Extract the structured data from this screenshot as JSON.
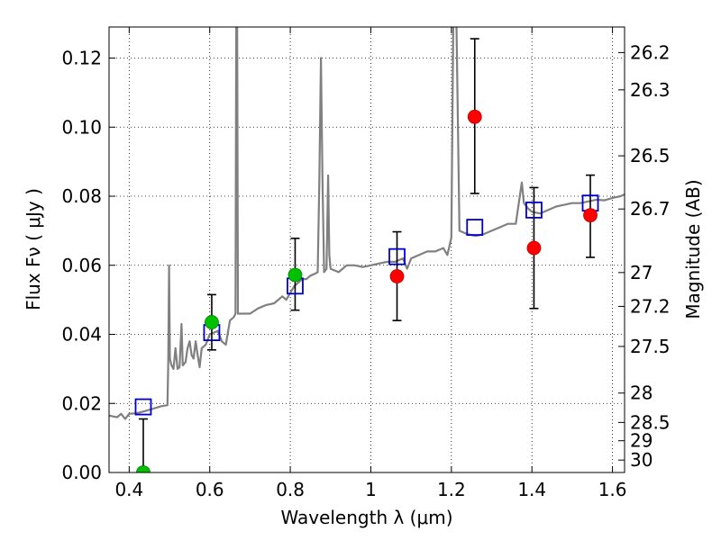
{
  "chart_data": {
    "type": "scatter",
    "xlabel": "Wavelength  λ (μm)",
    "ylabel_left": "Flux  Fν  ( μJy )",
    "ylabel_right": "Magnitude (AB)",
    "xlim": [
      0.35,
      1.63
    ],
    "ylim": [
      0,
      0.129
    ],
    "xticks": [
      0.4,
      0.6,
      0.8,
      1.0,
      1.2,
      1.4,
      1.6
    ],
    "xtick_labels": [
      "0.4",
      "0.6",
      "0.8",
      "1",
      "1.2",
      "1.4",
      "1.6"
    ],
    "yticks": [
      0,
      0.02,
      0.04,
      0.06,
      0.08,
      0.1,
      0.12
    ],
    "ytick_labels": [
      "0.00",
      "0.02",
      "0.04",
      "0.06",
      "0.08",
      "0.10",
      "0.12"
    ],
    "right_ticks": [
      {
        "label": "26.2",
        "flux": 0.1216
      },
      {
        "label": "26.3",
        "flux": 0.1108
      },
      {
        "label": "26.5",
        "flux": 0.0917
      },
      {
        "label": "26.7",
        "flux": 0.0763
      },
      {
        "label": "27",
        "flux": 0.0579
      },
      {
        "label": "27.2",
        "flux": 0.0481
      },
      {
        "label": "27.5",
        "flux": 0.0365
      },
      {
        "label": "28",
        "flux": 0.023
      },
      {
        "label": "28.5",
        "flux": 0.0145
      },
      {
        "label": "29",
        "flux": 0.0092
      },
      {
        "label": "30",
        "flux": 0.0036
      }
    ],
    "grid": true,
    "colors": {
      "spectrum": "#808080",
      "green_points": "#00c000",
      "red_points": "#ff0000",
      "model_squares": "#0000cc",
      "errorbar": "#000000"
    },
    "series": [
      {
        "kind": "spectrum",
        "points": [
          [
            0.35,
            0.0165
          ],
          [
            0.37,
            0.016
          ],
          [
            0.38,
            0.017
          ],
          [
            0.39,
            0.0155
          ],
          [
            0.4,
            0.017
          ],
          [
            0.42,
            0.0172
          ],
          [
            0.44,
            0.0178
          ],
          [
            0.46,
            0.0185
          ],
          [
            0.48,
            0.0192
          ],
          [
            0.495,
            0.0195
          ],
          [
            0.497,
            0.032
          ],
          [
            0.499,
            0.06
          ],
          [
            0.501,
            0.033
          ],
          [
            0.505,
            0.031
          ],
          [
            0.51,
            0.03
          ],
          [
            0.515,
            0.036
          ],
          [
            0.52,
            0.03
          ],
          [
            0.525,
            0.0305
          ],
          [
            0.53,
            0.043
          ],
          [
            0.533,
            0.031
          ],
          [
            0.54,
            0.032
          ],
          [
            0.545,
            0.036
          ],
          [
            0.55,
            0.038
          ],
          [
            0.555,
            0.034
          ],
          [
            0.56,
            0.033
          ],
          [
            0.565,
            0.038
          ],
          [
            0.57,
            0.034
          ],
          [
            0.575,
            0.0305
          ],
          [
            0.58,
            0.036
          ],
          [
            0.59,
            0.037
          ],
          [
            0.6,
            0.04
          ],
          [
            0.61,
            0.0405
          ],
          [
            0.62,
            0.041
          ],
          [
            0.63,
            0.038
          ],
          [
            0.64,
            0.037
          ],
          [
            0.65,
            0.044
          ],
          [
            0.66,
            0.045
          ],
          [
            0.664,
            0.046
          ],
          [
            0.666,
            0.135
          ],
          [
            0.668,
            0.135
          ],
          [
            0.67,
            0.046
          ],
          [
            0.68,
            0.046
          ],
          [
            0.7,
            0.046
          ],
          [
            0.72,
            0.0475
          ],
          [
            0.74,
            0.0485
          ],
          [
            0.76,
            0.049
          ],
          [
            0.78,
            0.051
          ],
          [
            0.79,
            0.05
          ],
          [
            0.8,
            0.052
          ],
          [
            0.81,
            0.054
          ],
          [
            0.82,
            0.055
          ],
          [
            0.83,
            0.056
          ],
          [
            0.84,
            0.056
          ],
          [
            0.85,
            0.057
          ],
          [
            0.86,
            0.0575
          ],
          [
            0.868,
            0.058
          ],
          [
            0.872,
            0.084
          ],
          [
            0.876,
            0.12
          ],
          [
            0.88,
            0.085
          ],
          [
            0.884,
            0.058
          ],
          [
            0.89,
            0.059
          ],
          [
            0.894,
            0.086
          ],
          [
            0.897,
            0.063
          ],
          [
            0.9,
            0.059
          ],
          [
            0.92,
            0.058
          ],
          [
            0.94,
            0.06
          ],
          [
            0.96,
            0.06
          ],
          [
            0.98,
            0.0595
          ],
          [
            1.0,
            0.06
          ],
          [
            1.02,
            0.0605
          ],
          [
            1.04,
            0.061
          ],
          [
            1.06,
            0.061
          ],
          [
            1.08,
            0.062
          ],
          [
            1.09,
            0.059
          ],
          [
            1.1,
            0.062
          ],
          [
            1.12,
            0.063
          ],
          [
            1.14,
            0.064
          ],
          [
            1.16,
            0.064
          ],
          [
            1.18,
            0.065
          ],
          [
            1.19,
            0.063
          ],
          [
            1.2,
            0.068
          ],
          [
            1.205,
            0.135
          ],
          [
            1.212,
            0.135
          ],
          [
            1.22,
            0.07
          ],
          [
            1.24,
            0.069
          ],
          [
            1.26,
            0.0685
          ],
          [
            1.28,
            0.069
          ],
          [
            1.3,
            0.07
          ],
          [
            1.32,
            0.071
          ],
          [
            1.34,
            0.072
          ],
          [
            1.36,
            0.072
          ],
          [
            1.375,
            0.084
          ],
          [
            1.38,
            0.078
          ],
          [
            1.39,
            0.0765
          ],
          [
            1.4,
            0.0755
          ],
          [
            1.42,
            0.075
          ],
          [
            1.44,
            0.076
          ],
          [
            1.46,
            0.077
          ],
          [
            1.48,
            0.0775
          ],
          [
            1.5,
            0.078
          ],
          [
            1.52,
            0.078
          ],
          [
            1.54,
            0.0785
          ],
          [
            1.56,
            0.079
          ],
          [
            1.58,
            0.0788
          ],
          [
            1.6,
            0.0795
          ],
          [
            1.62,
            0.08
          ],
          [
            1.63,
            0.0805
          ]
        ]
      },
      {
        "kind": "green",
        "points": [
          {
            "x": 0.435,
            "y": 0.0,
            "err_low": 0.0,
            "err_high": 0.0155
          },
          {
            "x": 0.605,
            "y": 0.0435,
            "err_low": 0.008,
            "err_high": 0.008
          },
          {
            "x": 0.812,
            "y": 0.0572,
            "err_low": 0.0102,
            "err_high": 0.0106
          }
        ]
      },
      {
        "kind": "red",
        "points": [
          {
            "x": 1.065,
            "y": 0.0568,
            "err_low": 0.0128,
            "err_high": 0.0129
          },
          {
            "x": 1.258,
            "y": 0.103,
            "err_low": 0.0222,
            "err_high": 0.0226
          },
          {
            "x": 1.405,
            "y": 0.065,
            "err_low": 0.0175,
            "err_high": 0.0175
          },
          {
            "x": 1.545,
            "y": 0.0745,
            "err_low": 0.0122,
            "err_high": 0.0116
          }
        ]
      },
      {
        "kind": "model",
        "points": [
          {
            "x": 0.435,
            "y": 0.019
          },
          {
            "x": 0.605,
            "y": 0.0405
          },
          {
            "x": 0.812,
            "y": 0.054
          },
          {
            "x": 1.065,
            "y": 0.0625
          },
          {
            "x": 1.258,
            "y": 0.071
          },
          {
            "x": 1.405,
            "y": 0.076
          },
          {
            "x": 1.545,
            "y": 0.078
          }
        ]
      }
    ]
  }
}
